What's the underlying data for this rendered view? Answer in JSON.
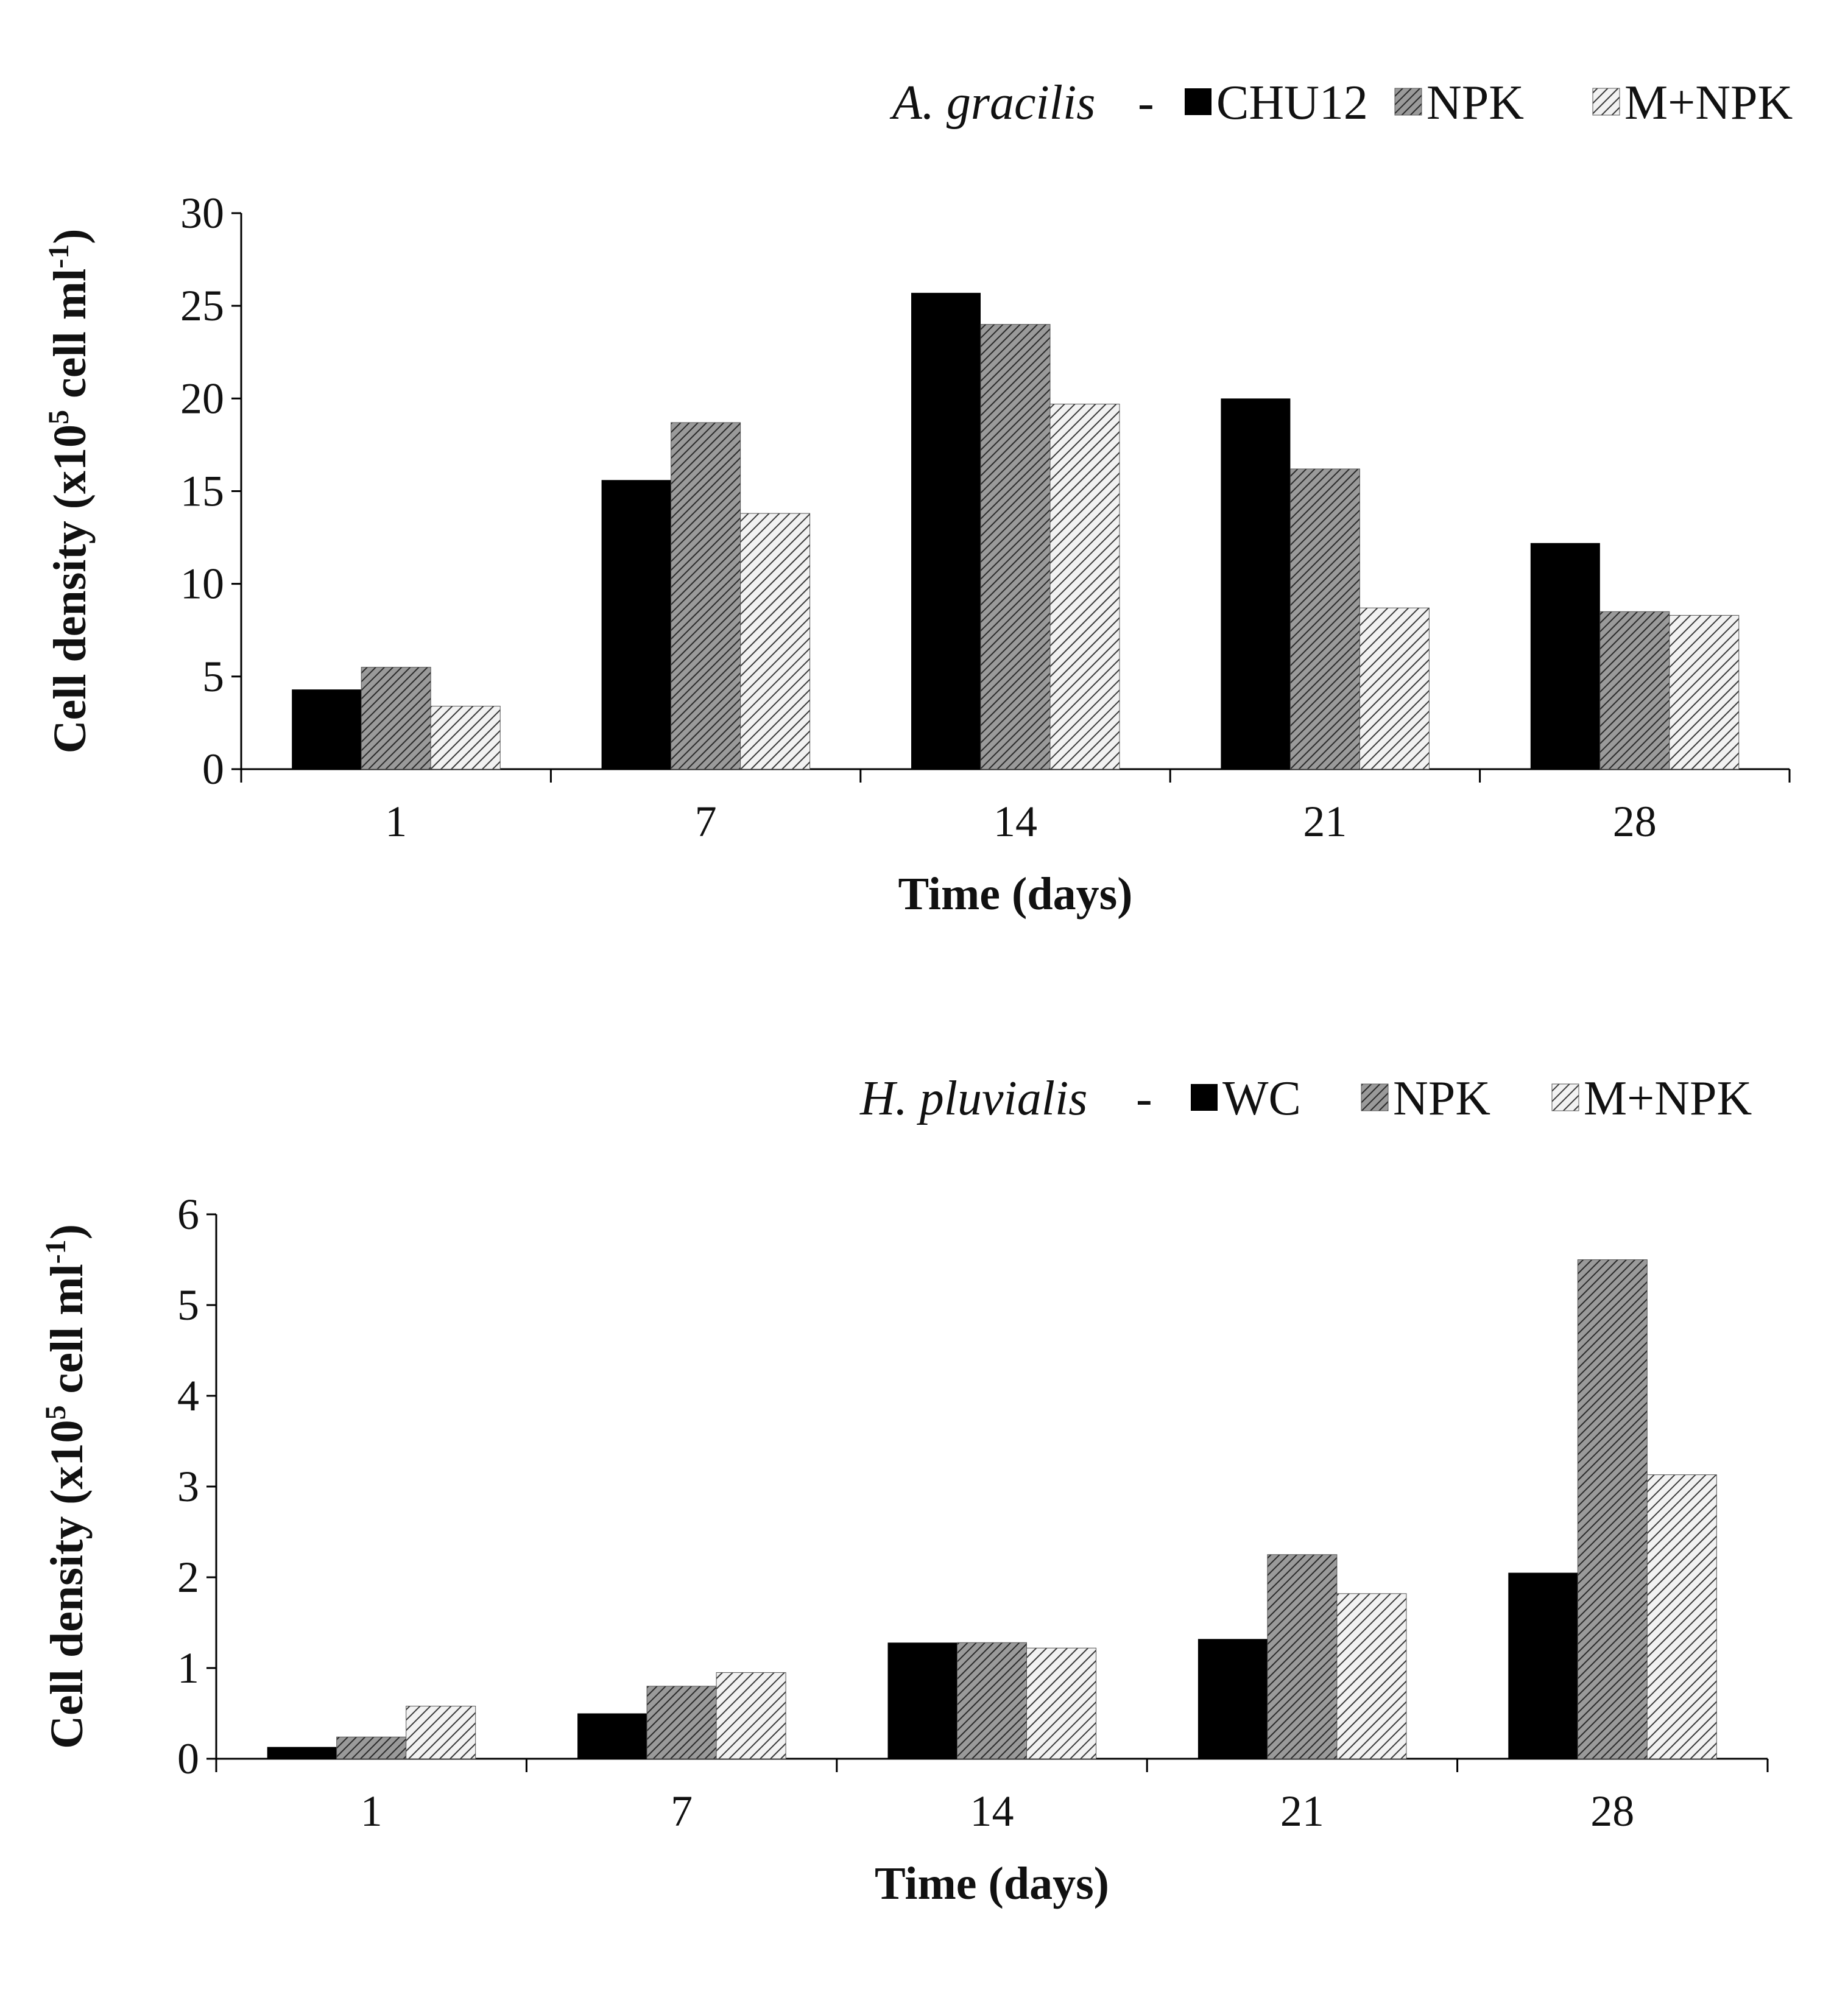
{
  "chart_data": [
    {
      "type": "bar",
      "species": "A. gracilis",
      "legend_separator": "-",
      "categories": [
        "1",
        "7",
        "14",
        "21",
        "28"
      ],
      "series": [
        {
          "name": "CHU12",
          "values": [
            4.3,
            15.6,
            25.7,
            20.0,
            12.2
          ],
          "fill": "solid"
        },
        {
          "name": "NPK",
          "values": [
            5.5,
            18.7,
            24.0,
            16.2,
            8.5
          ],
          "fill": "dense-hatch"
        },
        {
          "name": "M+NPK",
          "values": [
            3.4,
            13.8,
            19.7,
            8.7,
            8.3
          ],
          "fill": "light-hatch"
        }
      ],
      "xlabel": "Time (days)",
      "ylabel_prefix": "Cell density (x10",
      "ylabel_sup_exp": "5",
      "ylabel_mid": " cell ml",
      "ylabel_sup_unit": "-1",
      "ylabel_suffix": ")",
      "ylim": [
        0,
        30
      ],
      "yticks": [
        "0",
        "5",
        "10",
        "15",
        "20",
        "25",
        "30"
      ],
      "legend_position": "top-right",
      "grid": false
    },
    {
      "type": "bar",
      "species": "H. pluvialis",
      "legend_separator": "-",
      "categories": [
        "1",
        "7",
        "14",
        "21",
        "28"
      ],
      "series": [
        {
          "name": "WC",
          "values": [
            0.13,
            0.5,
            1.28,
            1.32,
            2.05
          ],
          "fill": "solid"
        },
        {
          "name": "NPK",
          "values": [
            0.24,
            0.8,
            1.28,
            2.25,
            5.5
          ],
          "fill": "dense-hatch"
        },
        {
          "name": "M+NPK",
          "values": [
            0.58,
            0.95,
            1.22,
            1.82,
            3.13
          ],
          "fill": "light-hatch"
        }
      ],
      "xlabel": "Time (days)",
      "ylabel_prefix": "Cell density (x10",
      "ylabel_sup_exp": "5",
      "ylabel_mid": " cell ml",
      "ylabel_sup_unit": "-1",
      "ylabel_suffix": ")",
      "ylim": [
        0,
        6
      ],
      "yticks": [
        "0",
        "1",
        "2",
        "3",
        "4",
        "5",
        "6"
      ],
      "legend_position": "top-right",
      "grid": false
    }
  ],
  "colors": {
    "solid": "#000000",
    "dense_hatch_bg": "#9a9a9a",
    "dense_hatch_line": "#2a2a2a",
    "light_hatch_bg": "#f2f2f2",
    "light_hatch_line": "#3a3a3a",
    "axis": "#000000"
  }
}
